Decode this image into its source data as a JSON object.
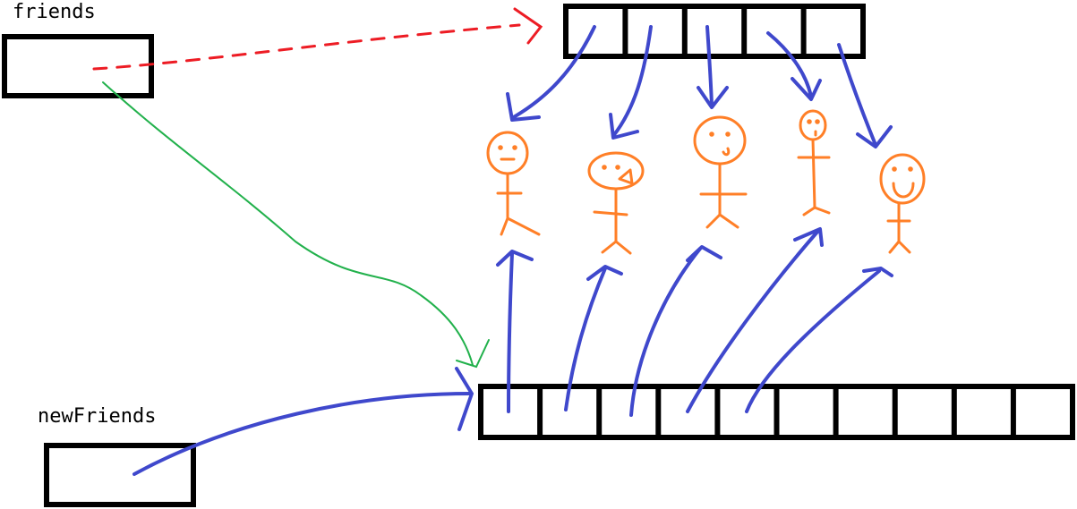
{
  "labels": {
    "friends": "friends",
    "new_friends": "newFriends"
  },
  "arrays": {
    "friends_array_length": 5,
    "new_friends_array_length": 10
  },
  "colors": {
    "box": "#000000",
    "reference": "#3f48cc",
    "old_reference": "#ed1c24",
    "reassign": "#22b14c",
    "person": "#ff7f27"
  }
}
